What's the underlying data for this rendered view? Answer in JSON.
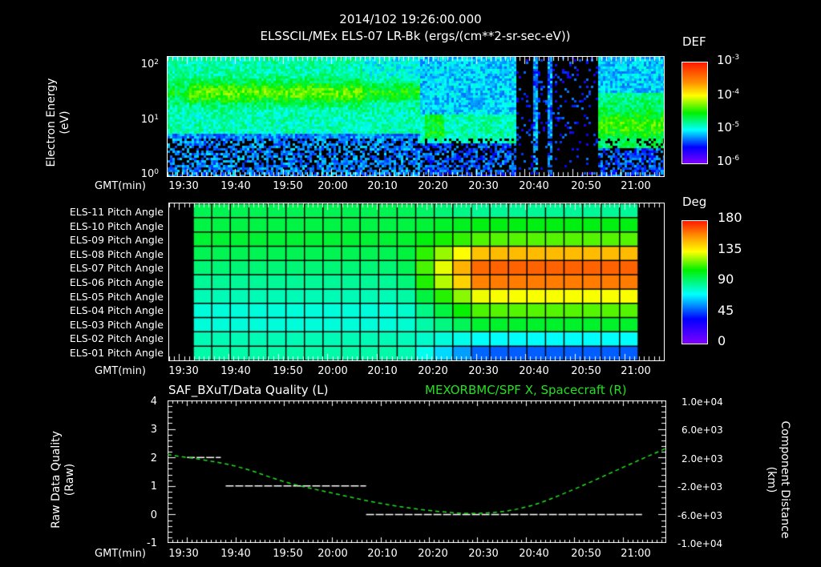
{
  "header": {
    "timestamp": "2014/102 19:26:00.000",
    "subtitle": "ELSSCIL/MEx ELS-07 LR-Bk  (ergs/(cm**2-sr-sec-eV))"
  },
  "time_axis": {
    "label": "GMT(min)",
    "ticks": [
      "19:30",
      "19:40",
      "19:50",
      "20:00",
      "20:10",
      "20:20",
      "20:30",
      "20:40",
      "20:50",
      "21:00"
    ]
  },
  "panel1": {
    "ylabel_line1": "Electron Energy",
    "ylabel_line2": "(eV)",
    "yticks": [
      {
        "base": "10",
        "exp": "2"
      },
      {
        "base": "10",
        "exp": "1"
      },
      {
        "base": "10",
        "exp": "0"
      }
    ],
    "colorbar": {
      "label": "DEF",
      "ticks": [
        {
          "base": "10",
          "exp": "-3"
        },
        {
          "base": "10",
          "exp": "-4"
        },
        {
          "base": "10",
          "exp": "-5"
        },
        {
          "base": "10",
          "exp": "-6"
        }
      ]
    }
  },
  "panel2": {
    "row_labels": [
      "ELS-11 Pitch Angle",
      "ELS-10 Pitch Angle",
      "ELS-09 Pitch Angle",
      "ELS-08 Pitch Angle",
      "ELS-07 Pitch Angle",
      "ELS-06 Pitch Angle",
      "ELS-05 Pitch Angle",
      "ELS-04 Pitch Angle",
      "ELS-03 Pitch Angle",
      "ELS-02 Pitch Angle",
      "ELS-01 Pitch Angle"
    ],
    "colorbar": {
      "label": "Deg",
      "ticks": [
        "180",
        "135",
        "90",
        "45",
        "0"
      ]
    }
  },
  "panel3": {
    "left_title": "SAF_BXuT/Data Quality (L)",
    "right_title": "MEXORBMC/SPF X, Spacecraft (R)",
    "ylabel_left_line1": "Raw Data Quality",
    "ylabel_left_line2": "(Raw)",
    "ylabel_right_line1": "Component Distance",
    "ylabel_right_line2": "(km)",
    "left_yticks": [
      "4",
      "3",
      "2",
      "1",
      "0",
      "-1"
    ],
    "right_yticks": [
      "1.0e+04",
      "6.0e+03",
      "2.0e+03",
      "-2.0e+03",
      "-6.0e+03",
      "-1.0e+04"
    ],
    "colors": {
      "quality": "#ffffff",
      "distance": "#22e022"
    }
  },
  "chart_data": [
    {
      "type": "heatmap",
      "title": "ELSSCIL/MEx ELS-07 LR-Bk (ergs/(cm**2-sr-sec-eV))",
      "xlabel": "GMT(min)",
      "ylabel": "Electron Energy (eV)",
      "x_range": [
        "19:26",
        "21:09"
      ],
      "y_scale": "log",
      "ylim": [
        1,
        150
      ],
      "colorbar": {
        "label": "DEF",
        "scale": "log",
        "range": [
          1e-06,
          0.001
        ]
      },
      "features": [
        {
          "time": "19:26-20:18",
          "energy_eV": "20-60",
          "level": "~1e-4 (green)"
        },
        {
          "time": "20:13-20:20",
          "energy_eV": "6-12",
          "level": "~2e-5 (cyan)"
        },
        {
          "time": "20:19-20:22",
          "energy_eV": "5-12",
          "level": "~5e-5 (green)"
        },
        {
          "time": "20:38-20:55",
          "energy_eV": "all",
          "level": "near zero, sparse counts"
        },
        {
          "time": "20:55-21:09",
          "energy_eV": "4-30",
          "level": "~1e-4 (green)"
        }
      ]
    },
    {
      "type": "heatmap",
      "title": "ELS Pitch Angle",
      "xlabel": "GMT(min)",
      "rows": [
        "ELS-11",
        "ELS-10",
        "ELS-09",
        "ELS-08",
        "ELS-07",
        "ELS-06",
        "ELS-05",
        "ELS-04",
        "ELS-03",
        "ELS-02",
        "ELS-01"
      ],
      "x_range": [
        "19:31",
        "21:04"
      ],
      "colorbar": {
        "label": "Deg",
        "range": [
          0,
          180
        ]
      },
      "values_deg_start": [
        80,
        82,
        84,
        80,
        76,
        72,
        68,
        64,
        64,
        68,
        70
      ],
      "values_deg_end": [
        72,
        88,
        100,
        135,
        158,
        150,
        120,
        100,
        85,
        60,
        40
      ],
      "transition_time": "20:10-20:30"
    },
    {
      "type": "line",
      "title": "SAF_BXuT/Data Quality (L) ; MEXORBMC/SPF X, Spacecraft (R)",
      "xlabel": "GMT(min)",
      "ylabel_left": "Raw Data Quality (Raw)",
      "ylabel_right": "Component Distance (km)",
      "ylim_left": [
        -1,
        4
      ],
      "ylim_right": [
        -10000,
        10000
      ],
      "series": [
        {
          "name": "Data Quality (L)",
          "color": "#ffffff",
          "style": "dashed",
          "segments": [
            {
              "x": [
                "19:30",
                "19:37"
              ],
              "y": 2
            },
            {
              "x": [
                "19:38",
                "20:07"
              ],
              "y": 1
            },
            {
              "x": [
                "20:07",
                "21:04"
              ],
              "y": 0
            }
          ]
        },
        {
          "name": "SPF X Spacecraft (R)",
          "color": "#22e022",
          "style": "dashed",
          "x": [
            "19:26",
            "19:40",
            "19:50",
            "20:00",
            "20:10",
            "20:20",
            "20:30",
            "20:40",
            "20:50",
            "21:00",
            "21:09"
          ],
          "y": [
            2400,
            1000,
            -1500,
            -3000,
            -4500,
            -5500,
            -6000,
            -5200,
            -2500,
            600,
            3300
          ]
        }
      ]
    }
  ]
}
